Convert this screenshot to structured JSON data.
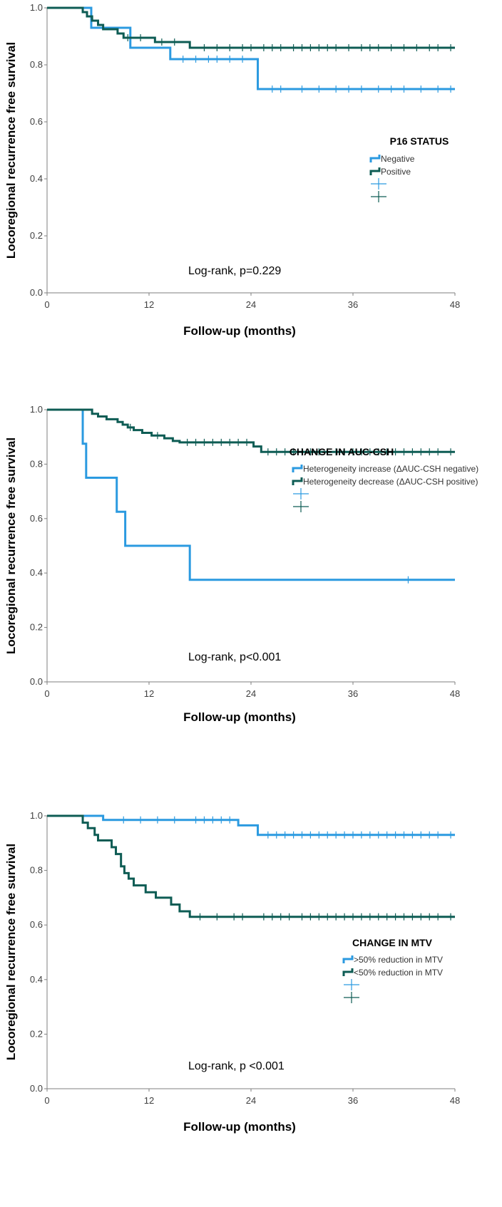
{
  "colors": {
    "negative": "#2b9ae0",
    "positive": "#0e5c54",
    "axis": "#7f7f7f"
  },
  "charts": [
    {
      "chart_data": {
        "type": "line",
        "step": true,
        "title": "",
        "xlabel": "Follow-up (months)",
        "ylabel": "Locoregional recurrence free survival",
        "xlim": [
          0,
          48
        ],
        "ylim": [
          0,
          1.0
        ],
        "x_ticks": [
          "0",
          "12",
          "24",
          "36",
          "48"
        ],
        "y_ticks": [
          "0.0",
          "0.2",
          "0.4",
          "0.6",
          "0.8",
          "1.0"
        ],
        "legend": {
          "title": "P16 STATUS",
          "entries": [
            "Negative",
            "Positive"
          ],
          "placement": "center-right"
        },
        "annotation": "Log-rank, p=0.229",
        "series": [
          {
            "name": "Negative",
            "color_key": "negative",
            "steps": [
              [
                0,
                1.0
              ],
              [
                5.2,
                0.93
              ],
              [
                9.8,
                0.86
              ],
              [
                14.5,
                0.82
              ],
              [
                24.8,
                0.715
              ],
              [
                48,
                0.715
              ]
            ],
            "censored": [
              16,
              17.5,
              19,
              20,
              21.5,
              23,
              26.5,
              27.5,
              30,
              32,
              34,
              35.5,
              37,
              39,
              40.5,
              42,
              44,
              46,
              47.5
            ]
          },
          {
            "name": "Positive",
            "color_key": "positive",
            "steps": [
              [
                0,
                1.0
              ],
              [
                4.2,
                0.985
              ],
              [
                4.7,
                0.97
              ],
              [
                5.3,
                0.955
              ],
              [
                6.0,
                0.94
              ],
              [
                6.6,
                0.925
              ],
              [
                8.3,
                0.91
              ],
              [
                9.0,
                0.895
              ],
              [
                12.7,
                0.88
              ],
              [
                16.8,
                0.86
              ],
              [
                48,
                0.86
              ]
            ],
            "censored": [
              9.5,
              11,
              13.5,
              15,
              18.5,
              20,
              21.5,
              23,
              24,
              25.5,
              26.5,
              27.5,
              29,
              30,
              31,
              32,
              33,
              34,
              35.5,
              37,
              38,
              39,
              40.5,
              42,
              43.5,
              45,
              46,
              47.5
            ]
          }
        ]
      }
    },
    {
      "chart_data": {
        "type": "line",
        "step": true,
        "title": "",
        "xlabel": "Follow-up (months)",
        "ylabel": "Locoregional recurrence free survival",
        "xlim": [
          0,
          48
        ],
        "ylim": [
          0,
          1.0
        ],
        "x_ticks": [
          "0",
          "12",
          "24",
          "36",
          "48"
        ],
        "y_ticks": [
          "0.0",
          "0.2",
          "0.4",
          "0.6",
          "0.8",
          "1.0"
        ],
        "legend": {
          "title": "CHANGE IN AUC-CSH",
          "entries": [
            "Heterogeneity increase (ΔAUC-CSH negative)",
            "Heterogeneity decrease (ΔAUC-CSH positive)"
          ],
          "placement": "center-right"
        },
        "annotation": "Log-rank, p<0.001",
        "series": [
          {
            "name": "Heterogeneity increase (ΔAUC-CSH negative)",
            "color_key": "negative",
            "steps": [
              [
                0,
                1.0
              ],
              [
                4.2,
                0.875
              ],
              [
                4.6,
                0.75
              ],
              [
                8.2,
                0.625
              ],
              [
                9.2,
                0.5
              ],
              [
                16.8,
                0.375
              ],
              [
                48,
                0.375
              ]
            ],
            "censored": [
              42.5
            ]
          },
          {
            "name": "Heterogeneity decrease (ΔAUC-CSH positive)",
            "color_key": "positive",
            "steps": [
              [
                0,
                1.0
              ],
              [
                5.3,
                0.985
              ],
              [
                6.0,
                0.975
              ],
              [
                7.0,
                0.965
              ],
              [
                8.3,
                0.955
              ],
              [
                8.9,
                0.945
              ],
              [
                9.5,
                0.935
              ],
              [
                10.2,
                0.925
              ],
              [
                11.2,
                0.915
              ],
              [
                12.3,
                0.905
              ],
              [
                13.8,
                0.895
              ],
              [
                14.8,
                0.885
              ],
              [
                15.6,
                0.88
              ],
              [
                24.3,
                0.865
              ],
              [
                25.2,
                0.845
              ],
              [
                48,
                0.845
              ]
            ],
            "censored": [
              9.8,
              13,
              16.5,
              17.5,
              18.5,
              19.5,
              20.5,
              21.5,
              22.5,
              23.5,
              26,
              27,
              28,
              29,
              30,
              31,
              32,
              33,
              34,
              35,
              36,
              37,
              38,
              39,
              40,
              41,
              42,
              43,
              44,
              45,
              46,
              47.5
            ]
          }
        ]
      }
    },
    {
      "chart_data": {
        "type": "line",
        "step": true,
        "title": "",
        "xlabel": "Follow-up (months)",
        "ylabel": "Locoregional recurrence free survival",
        "xlim": [
          0,
          48
        ],
        "ylim": [
          0,
          1.0
        ],
        "x_ticks": [
          "0",
          "12",
          "24",
          "36",
          "48"
        ],
        "y_ticks": [
          "0.0",
          "0.2",
          "0.4",
          "0.6",
          "0.8",
          "1.0"
        ],
        "legend": {
          "title": "CHANGE IN MTV",
          "entries": [
            ">50% reduction in MTV",
            "<50% reduction in MTV"
          ],
          "placement": "center-right"
        },
        "annotation": "Log-rank, p <0.001",
        "series": [
          {
            "name": ">50% reduction in MTV",
            "color_key": "negative",
            "steps": [
              [
                0,
                1.0
              ],
              [
                6.6,
                0.985
              ],
              [
                22.5,
                0.965
              ],
              [
                24.8,
                0.93
              ],
              [
                48,
                0.93
              ]
            ],
            "censored": [
              9,
              11,
              13,
              15,
              17.5,
              18.5,
              19.5,
              20.5,
              21.5,
              26,
              27,
              28,
              29,
              30,
              31,
              32,
              33,
              34,
              35,
              36,
              37,
              38,
              39,
              40,
              41,
              42,
              43,
              44,
              45,
              46,
              47.5
            ]
          },
          {
            "name": "<50% reduction in MTV",
            "color_key": "positive",
            "steps": [
              [
                0,
                1.0
              ],
              [
                4.2,
                0.975
              ],
              [
                4.8,
                0.955
              ],
              [
                5.6,
                0.93
              ],
              [
                6.0,
                0.91
              ],
              [
                7.6,
                0.885
              ],
              [
                8.1,
                0.86
              ],
              [
                8.7,
                0.815
              ],
              [
                9.1,
                0.79
              ],
              [
                9.6,
                0.77
              ],
              [
                10.2,
                0.745
              ],
              [
                11.6,
                0.72
              ],
              [
                12.8,
                0.7
              ],
              [
                14.6,
                0.675
              ],
              [
                15.6,
                0.65
              ],
              [
                16.8,
                0.63
              ],
              [
                48,
                0.63
              ]
            ],
            "censored": [
              18,
              20,
              22,
              23,
              25.5,
              26.5,
              27.5,
              28.5,
              30,
              31,
              32,
              33,
              34,
              35,
              36,
              37,
              38,
              39,
              40,
              41,
              42,
              43,
              44,
              45,
              46,
              47.5
            ]
          }
        ]
      }
    }
  ]
}
